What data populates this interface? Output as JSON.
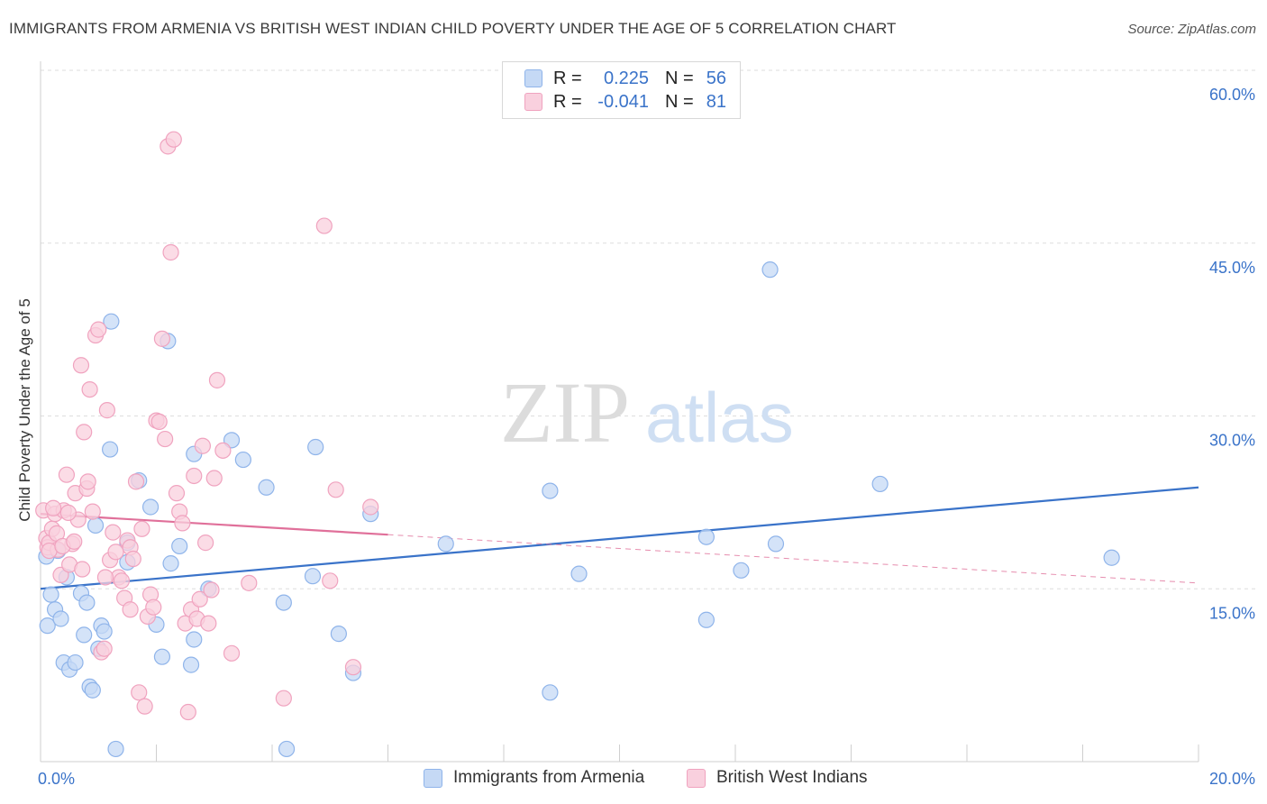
{
  "title": "IMMIGRANTS FROM ARMENIA VS BRITISH WEST INDIAN CHILD POVERTY UNDER THE AGE OF 5 CORRELATION CHART",
  "source": "Source: ZipAtlas.com",
  "watermark": {
    "zip": "ZIP",
    "atlas": "atlas"
  },
  "legend": {
    "rows": [
      {
        "r_label": "R =",
        "r_value": "0.225",
        "n_label": "N =",
        "n_value": "56",
        "color": "#8fb4ea",
        "fill": "#c5d9f5"
      },
      {
        "r_label": "R =",
        "r_value": "-0.041",
        "n_label": "N =",
        "n_value": "81",
        "color": "#f0a3bf",
        "fill": "#f9d0de"
      }
    ]
  },
  "bottom_legend": [
    {
      "label": "Immigrants from Armenia",
      "color": "#8fb4ea",
      "fill": "#c5d9f5"
    },
    {
      "label": "British West Indians",
      "color": "#f0a3bf",
      "fill": "#f9d0de"
    }
  ],
  "chart_data": {
    "type": "scatter",
    "title": "IMMIGRANTS FROM ARMENIA VS BRITISH WEST INDIAN CHILD POVERTY UNDER THE AGE OF 5 CORRELATION CHART",
    "ylabel": "Child Poverty Under the Age of 5",
    "xlabel": "",
    "xlim": [
      0,
      20
    ],
    "ylim": [
      0,
      60
    ],
    "x_tick_labels": [
      {
        "value": 0,
        "label": "0.0%"
      },
      {
        "value": 20,
        "label": "20.0%"
      }
    ],
    "y_tick_labels": [
      {
        "value": 15,
        "label": "15.0%"
      },
      {
        "value": 30,
        "label": "30.0%"
      },
      {
        "value": 45,
        "label": "45.0%"
      },
      {
        "value": 60,
        "label": "60.0%"
      }
    ],
    "grid": true,
    "series": [
      {
        "name": "Immigrants from Armenia",
        "color": "#3a73c9",
        "marker_fill": "#c5d9f5",
        "marker_stroke": "#8fb4ea",
        "trend": {
          "x": [
            0,
            20
          ],
          "y": [
            15.0,
            23.8
          ],
          "dashed_from": null
        },
        "points": [
          [
            0.1,
            17.8
          ],
          [
            0.12,
            11.8
          ],
          [
            0.18,
            14.5
          ],
          [
            0.25,
            13.2
          ],
          [
            0.35,
            12.4
          ],
          [
            0.4,
            8.6
          ],
          [
            0.45,
            16.0
          ],
          [
            0.5,
            8.0
          ],
          [
            0.6,
            8.6
          ],
          [
            0.7,
            14.6
          ],
          [
            0.75,
            11.0
          ],
          [
            0.8,
            13.8
          ],
          [
            0.85,
            6.5
          ],
          [
            0.9,
            6.2
          ],
          [
            0.95,
            20.5
          ],
          [
            1.0,
            9.8
          ],
          [
            1.05,
            11.8
          ],
          [
            1.1,
            11.3
          ],
          [
            1.2,
            27.1
          ],
          [
            1.22,
            38.2
          ],
          [
            1.5,
            19.0
          ],
          [
            1.5,
            17.3
          ],
          [
            1.7,
            24.4
          ],
          [
            1.9,
            22.1
          ],
          [
            2.0,
            11.9
          ],
          [
            2.1,
            9.1
          ],
          [
            2.2,
            36.5
          ],
          [
            2.25,
            17.2
          ],
          [
            2.4,
            18.7
          ],
          [
            2.6,
            8.4
          ],
          [
            2.65,
            10.6
          ],
          [
            2.65,
            26.7
          ],
          [
            2.9,
            15.0
          ],
          [
            3.3,
            27.9
          ],
          [
            3.5,
            26.2
          ],
          [
            3.9,
            23.8
          ],
          [
            4.2,
            13.8
          ],
          [
            4.25,
            1.1
          ],
          [
            4.7,
            16.1
          ],
          [
            4.75,
            27.3
          ],
          [
            5.15,
            11.1
          ],
          [
            5.4,
            7.7
          ],
          [
            5.7,
            21.5
          ],
          [
            7.0,
            18.9
          ],
          [
            8.8,
            6.0
          ],
          [
            8.8,
            23.5
          ],
          [
            9.3,
            16.3
          ],
          [
            11.5,
            12.3
          ],
          [
            11.5,
            19.5
          ],
          [
            12.1,
            16.6
          ],
          [
            12.6,
            42.7
          ],
          [
            12.7,
            18.9
          ],
          [
            14.5,
            24.1
          ],
          [
            18.5,
            17.7
          ],
          [
            1.3,
            1.1
          ],
          [
            0.3,
            18.3
          ]
        ]
      },
      {
        "name": "British West Indians",
        "color": "#e0709a",
        "marker_fill": "#f9d0de",
        "marker_stroke": "#f0a3bf",
        "trend": {
          "x": [
            0,
            20
          ],
          "y": [
            21.5,
            15.5
          ],
          "dashed_from": 6.0
        },
        "points": [
          [
            0.05,
            21.8
          ],
          [
            0.1,
            19.4
          ],
          [
            0.12,
            18.6
          ],
          [
            0.15,
            19.0
          ],
          [
            0.2,
            20.2
          ],
          [
            0.25,
            21.5
          ],
          [
            0.3,
            18.4
          ],
          [
            0.35,
            16.2
          ],
          [
            0.4,
            21.8
          ],
          [
            0.45,
            24.9
          ],
          [
            0.5,
            17.1
          ],
          [
            0.55,
            18.9
          ],
          [
            0.6,
            23.3
          ],
          [
            0.65,
            21.0
          ],
          [
            0.7,
            34.4
          ],
          [
            0.72,
            16.7
          ],
          [
            0.75,
            28.6
          ],
          [
            0.8,
            23.7
          ],
          [
            0.82,
            24.3
          ],
          [
            0.85,
            32.3
          ],
          [
            0.9,
            21.7
          ],
          [
            0.95,
            37.0
          ],
          [
            1.0,
            37.5
          ],
          [
            1.05,
            9.5
          ],
          [
            1.1,
            9.8
          ],
          [
            1.15,
            30.5
          ],
          [
            1.2,
            17.5
          ],
          [
            1.25,
            19.9
          ],
          [
            1.3,
            18.2
          ],
          [
            1.35,
            16.0
          ],
          [
            1.4,
            15.7
          ],
          [
            1.45,
            14.2
          ],
          [
            1.5,
            19.2
          ],
          [
            1.55,
            18.6
          ],
          [
            1.6,
            17.6
          ],
          [
            1.65,
            24.3
          ],
          [
            1.7,
            6.0
          ],
          [
            1.75,
            20.2
          ],
          [
            1.8,
            4.8
          ],
          [
            1.85,
            12.6
          ],
          [
            1.9,
            14.5
          ],
          [
            1.95,
            13.4
          ],
          [
            2.0,
            29.6
          ],
          [
            2.05,
            29.5
          ],
          [
            2.1,
            36.7
          ],
          [
            2.15,
            28.0
          ],
          [
            2.2,
            53.4
          ],
          [
            2.25,
            44.2
          ],
          [
            2.3,
            54.0
          ],
          [
            2.35,
            23.3
          ],
          [
            2.4,
            21.7
          ],
          [
            2.45,
            20.7
          ],
          [
            2.5,
            12.0
          ],
          [
            2.55,
            4.3
          ],
          [
            2.6,
            13.2
          ],
          [
            2.65,
            24.8
          ],
          [
            2.7,
            12.4
          ],
          [
            2.75,
            14.1
          ],
          [
            2.8,
            27.4
          ],
          [
            2.85,
            19.0
          ],
          [
            2.9,
            12.0
          ],
          [
            2.95,
            14.9
          ],
          [
            3.0,
            24.6
          ],
          [
            3.05,
            33.1
          ],
          [
            3.15,
            27.0
          ],
          [
            3.3,
            9.4
          ],
          [
            3.6,
            15.5
          ],
          [
            4.2,
            5.5
          ],
          [
            4.9,
            46.5
          ],
          [
            5.0,
            15.7
          ],
          [
            5.1,
            23.6
          ],
          [
            5.4,
            8.2
          ],
          [
            5.7,
            22.1
          ],
          [
            0.15,
            18.3
          ],
          [
            0.22,
            22.0
          ],
          [
            0.28,
            19.8
          ],
          [
            0.38,
            18.7
          ],
          [
            0.48,
            21.6
          ],
          [
            0.58,
            19.1
          ],
          [
            1.12,
            16.0
          ],
          [
            1.55,
            13.2
          ]
        ]
      }
    ]
  }
}
